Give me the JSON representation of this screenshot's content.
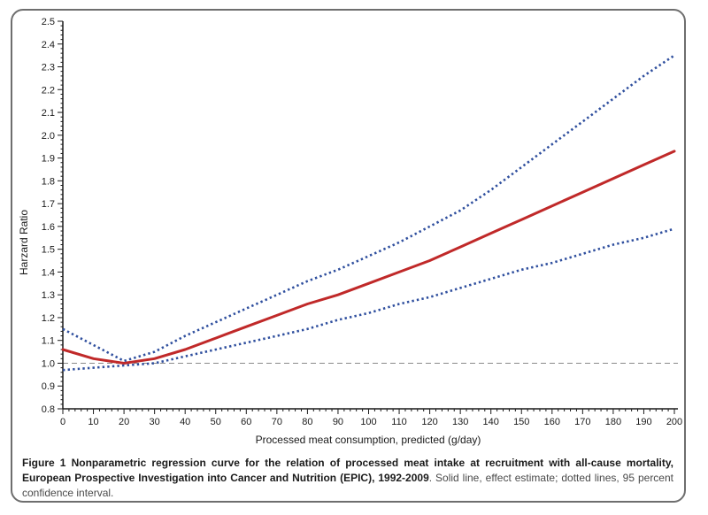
{
  "figure": {
    "caption_bold": "Figure 1 Nonparametric regression curve for the relation of processed meat intake at recruitment with all-cause mortality, European Prospective Investigation into Cancer and Nutrition (EPIC), 1992-2009",
    "caption_regular": ". Solid line, effect estimate; dotted lines, 95 percent confidence interval."
  },
  "chart_data": {
    "type": "line",
    "title": "",
    "xlabel": "Processed meat consumption, predicted (g/day)",
    "ylabel": "Harzard Ratio",
    "xlim": [
      0,
      200
    ],
    "ylim": [
      0.8,
      2.5
    ],
    "x_major_step": 10,
    "x_minor_step": 2,
    "y_major_step": 0.1,
    "y_minor_step": 0.02,
    "grid": false,
    "legend": "none",
    "reference_line_y": 1.0,
    "x": [
      0,
      10,
      20,
      30,
      40,
      50,
      60,
      70,
      80,
      90,
      100,
      110,
      120,
      130,
      140,
      150,
      160,
      170,
      180,
      190,
      200
    ],
    "series": [
      {
        "id": "effect-estimate-line",
        "name": "effect estimate (solid red)",
        "color": "#c02929",
        "style": "solid",
        "values": [
          1.06,
          1.02,
          1.0,
          1.02,
          1.06,
          1.11,
          1.16,
          1.21,
          1.26,
          1.3,
          1.35,
          1.4,
          1.45,
          1.51,
          1.57,
          1.63,
          1.69,
          1.75,
          1.81,
          1.87,
          1.93
        ]
      },
      {
        "id": "ci-upper-line",
        "name": "95 percent CI upper (dotted blue)",
        "color": "#2f4f9e",
        "style": "dotted",
        "values": [
          1.15,
          1.08,
          1.01,
          1.05,
          1.12,
          1.18,
          1.24,
          1.3,
          1.36,
          1.41,
          1.47,
          1.53,
          1.6,
          1.67,
          1.76,
          1.86,
          1.96,
          2.06,
          2.16,
          2.26,
          2.35
        ]
      },
      {
        "id": "ci-lower-line",
        "name": "95 percent CI lower (dotted blue)",
        "color": "#2f4f9e",
        "style": "dotted",
        "values": [
          0.97,
          0.98,
          0.99,
          1.0,
          1.03,
          1.06,
          1.09,
          1.12,
          1.15,
          1.19,
          1.22,
          1.26,
          1.29,
          1.33,
          1.37,
          1.41,
          1.44,
          1.48,
          1.52,
          1.55,
          1.59
        ]
      }
    ],
    "colors": {
      "axis": "#1a1a1a",
      "reference": "#8a8a8a"
    }
  }
}
